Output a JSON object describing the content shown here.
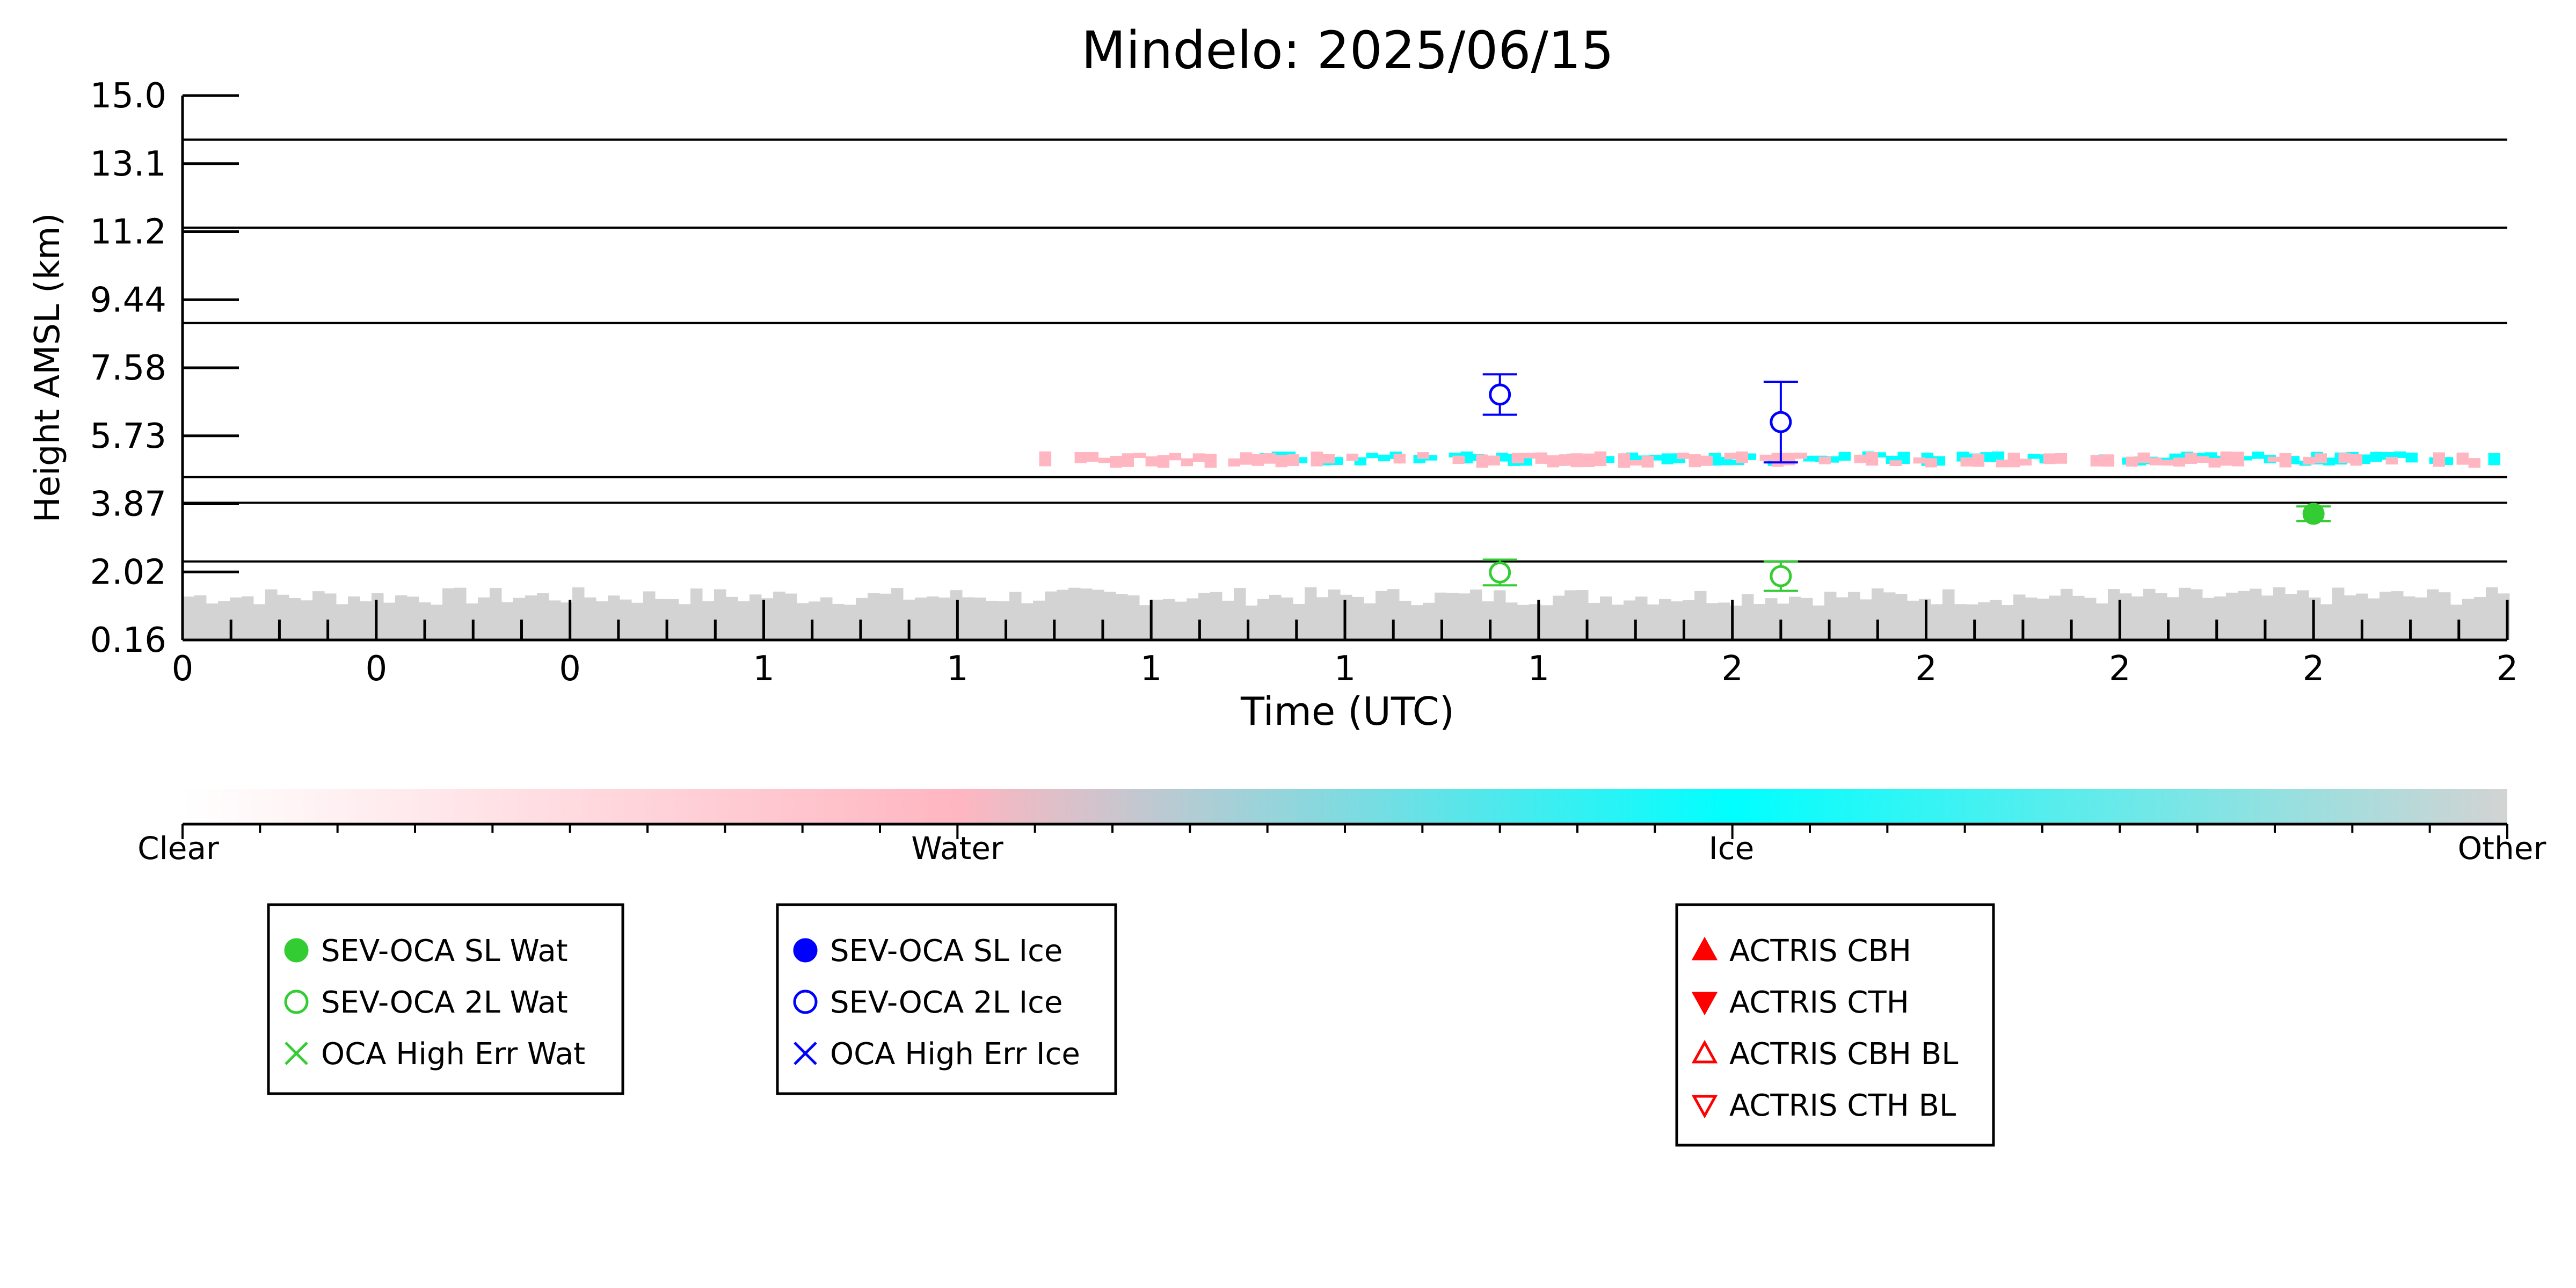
{
  "chart_data": {
    "type": "heatmap",
    "title": "Mindelo: 2025/06/15",
    "xlabel": "Time (UTC)",
    "ylabel": "Height AMSL (km)",
    "yticks": [
      "15.0",
      "13.1",
      "11.2",
      "9.44",
      "7.58",
      "5.73",
      "3.87",
      "2.02",
      "0.16"
    ],
    "xticks": [
      "0",
      "0",
      "0",
      "1",
      "1",
      "1",
      "1",
      "1",
      "2",
      "2",
      "2",
      "2",
      "2"
    ],
    "ylim": [
      0.16,
      15.0
    ],
    "colorbar": {
      "labels": [
        "Clear",
        "Water",
        "Ice",
        "Other"
      ],
      "colors": [
        "#ffffff",
        "#ffb6c1",
        "#00ffff",
        "#d3d3d3"
      ]
    },
    "layers": [
      {
        "name": "Other",
        "color": "#d3d3d3",
        "height_km": [
          0.16,
          1.6
        ],
        "x_range": [
          0,
          12
        ]
      },
      {
        "name": "Ice",
        "color": "#00ffff",
        "height_km": [
          4.9,
          5.3
        ],
        "x_range": [
          5.5,
          12
        ]
      },
      {
        "name": "Water",
        "color": "#ffb6c1",
        "height_km": [
          4.85,
          5.3
        ],
        "x_range": [
          4.3,
          11.8
        ]
      }
    ],
    "horizontal_lines_km": [
      13.8,
      11.4,
      8.8,
      4.6,
      3.9,
      2.3
    ],
    "series": [
      {
        "name": "SEV-OCA 2L Ice",
        "color": "#0000ff",
        "marker": "open-circle",
        "points": [
          {
            "x": 6.8,
            "y": 6.85,
            "err": 0.55
          },
          {
            "x": 8.25,
            "y": 6.1,
            "err": 1.1
          }
        ]
      },
      {
        "name": "SEV-OCA 2L Wat",
        "color": "#33cc33",
        "marker": "open-circle",
        "points": [
          {
            "x": 6.8,
            "y": 2.0,
            "err": 0.35
          },
          {
            "x": 8.25,
            "y": 1.9,
            "err": 0.4
          }
        ]
      },
      {
        "name": "SEV-OCA SL Wat",
        "color": "#33cc33",
        "marker": "filled-circle",
        "points": [
          {
            "x": 11.0,
            "y": 3.6,
            "err": 0.2
          }
        ]
      }
    ],
    "legends": [
      {
        "items": [
          {
            "label": "SEV-OCA SL Wat",
            "marker": "filled-circle",
            "color": "#33cc33"
          },
          {
            "label": "SEV-OCA 2L Wat",
            "marker": "open-circle",
            "color": "#33cc33"
          },
          {
            "label": "OCA High Err Wat",
            "marker": "x",
            "color": "#33cc33"
          }
        ]
      },
      {
        "items": [
          {
            "label": "SEV-OCA SL Ice",
            "marker": "filled-circle",
            "color": "#0000ff"
          },
          {
            "label": "SEV-OCA 2L Ice",
            "marker": "open-circle",
            "color": "#0000ff"
          },
          {
            "label": "OCA High Err Ice",
            "marker": "x",
            "color": "#0000ff"
          }
        ]
      },
      {
        "items": [
          {
            "label": "ACTRIS CBH",
            "marker": "triangle-up",
            "color": "#ff0000"
          },
          {
            "label": "ACTRIS CTH",
            "marker": "triangle-down",
            "color": "#ff0000"
          },
          {
            "label": "ACTRIS CBH BL",
            "marker": "open-triangle-up",
            "color": "#ff0000"
          },
          {
            "label": "ACTRIS CTH BL",
            "marker": "open-triangle-down",
            "color": "#ff0000"
          }
        ]
      }
    ]
  }
}
